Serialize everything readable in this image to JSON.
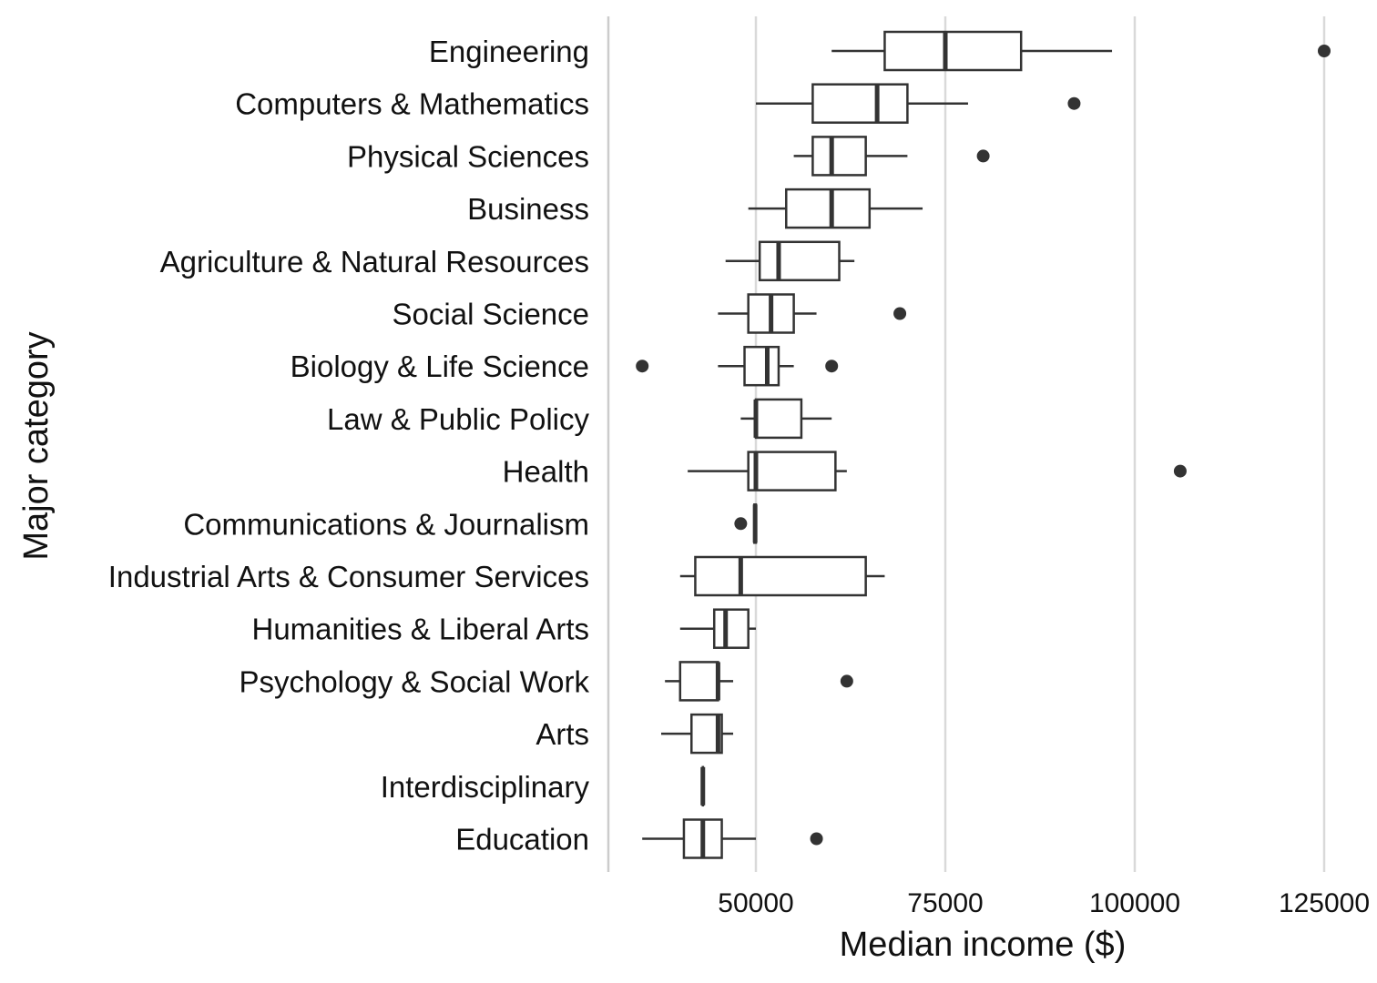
{
  "chart_data": {
    "type": "boxplot",
    "xlabel": "Median income ($)",
    "ylabel": "Major category",
    "xlim": [
      31000,
      127000
    ],
    "xticks": [
      50000,
      75000,
      100000,
      125000
    ],
    "xtick_labels": [
      "50000",
      "75000",
      "100000",
      "125000"
    ],
    "grid": "vertical major gridlines",
    "colors": {
      "box": "#333333",
      "grid": "#d9d9d9",
      "text": "#111111"
    },
    "categories": [
      "Engineering",
      "Computers & Mathematics",
      "Physical Sciences",
      "Business",
      "Agriculture & Natural Resources",
      "Social Science",
      "Biology & Life Science",
      "Law & Public Policy",
      "Health",
      "Communications & Journalism",
      "Industrial Arts & Consumer Services",
      "Humanities & Liberal Arts",
      "Psychology & Social Work",
      "Arts",
      "Interdisciplinary",
      "Education"
    ],
    "boxes": [
      {
        "whisker_low": 60000,
        "q1": 67000,
        "median": 75000,
        "q3": 85000,
        "whisker_high": 97000,
        "outliers": [
          125000
        ]
      },
      {
        "whisker_low": 50000,
        "q1": 57500,
        "median": 66000,
        "q3": 70000,
        "whisker_high": 78000,
        "outliers": [
          92000
        ]
      },
      {
        "whisker_low": 55000,
        "q1": 57500,
        "median": 60000,
        "q3": 64500,
        "whisker_high": 70000,
        "outliers": [
          80000
        ]
      },
      {
        "whisker_low": 49000,
        "q1": 54000,
        "median": 60000,
        "q3": 65000,
        "whisker_high": 72000,
        "outliers": []
      },
      {
        "whisker_low": 46000,
        "q1": 50500,
        "median": 53000,
        "q3": 61000,
        "whisker_high": 63000,
        "outliers": []
      },
      {
        "whisker_low": 45000,
        "q1": 49000,
        "median": 52000,
        "q3": 55000,
        "whisker_high": 58000,
        "outliers": [
          69000
        ]
      },
      {
        "whisker_low": 45000,
        "q1": 48500,
        "median": 51500,
        "q3": 53000,
        "whisker_high": 55000,
        "outliers": [
          35000,
          60000
        ]
      },
      {
        "whisker_low": 48000,
        "q1": 50000,
        "median": 50000,
        "q3": 56000,
        "whisker_high": 60000,
        "outliers": []
      },
      {
        "whisker_low": 41000,
        "q1": 49000,
        "median": 50000,
        "q3": 60500,
        "whisker_high": 62000,
        "outliers": [
          106000
        ]
      },
      {
        "whisker_low": 49800,
        "q1": 49800,
        "median": 49900,
        "q3": 50000,
        "whisker_high": 50000,
        "outliers": [
          48000
        ]
      },
      {
        "whisker_low": 40000,
        "q1": 42000,
        "median": 48000,
        "q3": 64500,
        "whisker_high": 67000,
        "outliers": []
      },
      {
        "whisker_low": 40000,
        "q1": 44500,
        "median": 46000,
        "q3": 49000,
        "whisker_high": 50000,
        "outliers": []
      },
      {
        "whisker_low": 38000,
        "q1": 40000,
        "median": 45000,
        "q3": 45000,
        "whisker_high": 47000,
        "outliers": [
          62000
        ]
      },
      {
        "whisker_low": 37500,
        "q1": 41500,
        "median": 45000,
        "q3": 45500,
        "whisker_high": 47000,
        "outliers": []
      },
      {
        "whisker_low": 43000,
        "q1": 43000,
        "median": 43000,
        "q3": 43000,
        "whisker_high": 43000,
        "outliers": []
      },
      {
        "whisker_low": 35000,
        "q1": 40500,
        "median": 43000,
        "q3": 45500,
        "whisker_high": 50000,
        "outliers": [
          58000
        ]
      }
    ]
  }
}
